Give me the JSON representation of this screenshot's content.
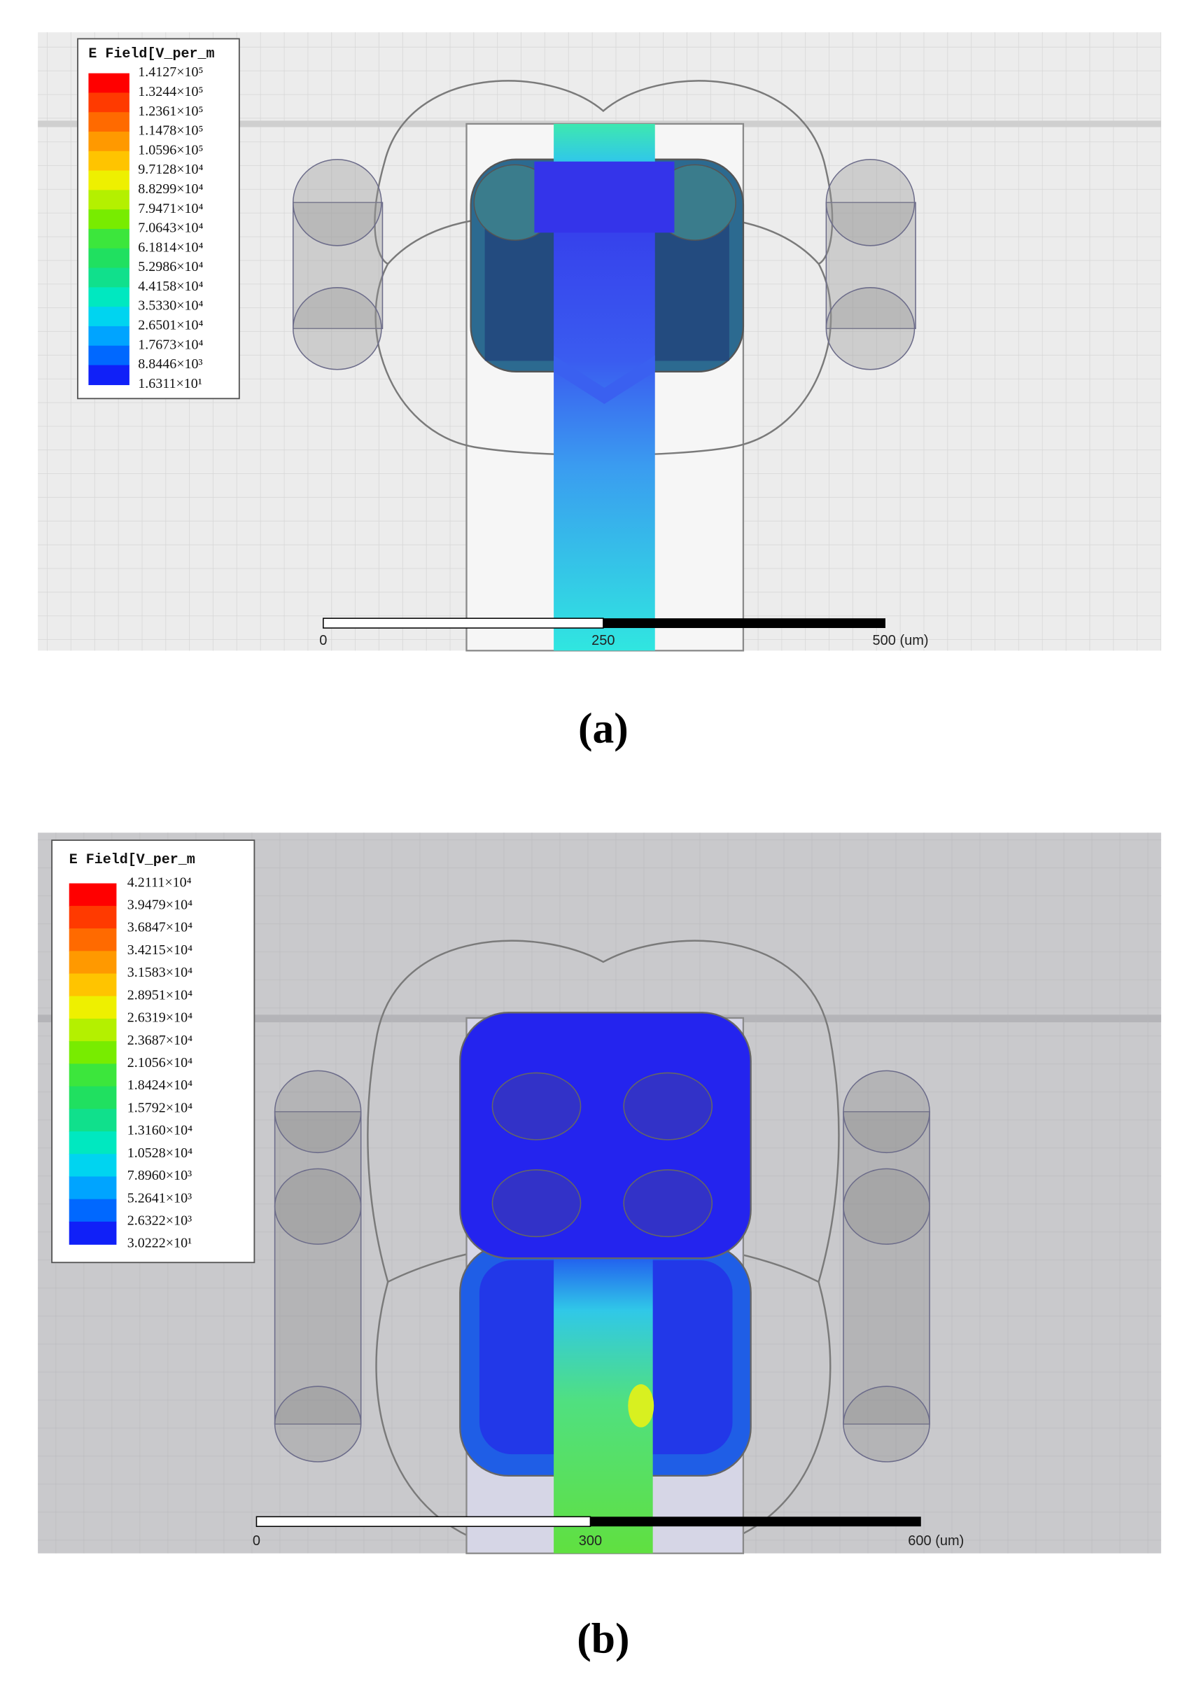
{
  "panels": [
    {
      "label": "(a)",
      "legend": {
        "title": "E Field[V_per_m",
        "labels": [
          "1.4127×10⁵",
          "1.3244×10⁵",
          "1.2361×10⁵",
          "1.1478×10⁵",
          "1.0596×10⁵",
          "9.7128×10⁴",
          "8.8299×10⁴",
          "7.9471×10⁴",
          "7.0643×10⁴",
          "6.1814×10⁴",
          "5.2986×10⁴",
          "4.4158×10⁴",
          "3.5330×10⁴",
          "2.6501×10⁴",
          "1.7673×10⁴",
          "8.8446×10³",
          "1.6311×10¹"
        ],
        "colors": [
          "#ff0000",
          "#ff3a00",
          "#ff6a00",
          "#ff9900",
          "#ffc400",
          "#eef000",
          "#b4f000",
          "#78ec00",
          "#3ce63c",
          "#20e060",
          "#10e08c",
          "#00e8c0",
          "#00d4f0",
          "#00a4ff",
          "#0068ff",
          "#1020f8"
        ]
      },
      "scale_bar": {
        "labels": [
          "0",
          "250",
          "500 (um)"
        ]
      }
    },
    {
      "label": "(b)",
      "legend": {
        "title": "E Field[V_per_m",
        "labels": [
          "4.2111×10⁴",
          "3.9479×10⁴",
          "3.6847×10⁴",
          "3.4215×10⁴",
          "3.1583×10⁴",
          "2.8951×10⁴",
          "2.6319×10⁴",
          "2.3687×10⁴",
          "2.1056×10⁴",
          "1.8424×10⁴",
          "1.5792×10⁴",
          "1.3160×10⁴",
          "1.0528×10⁴",
          "7.8960×10³",
          "5.2641×10³",
          "2.6322×10³",
          "3.0222×10¹"
        ],
        "colors": [
          "#ff0000",
          "#ff3a00",
          "#ff6a00",
          "#ff9900",
          "#ffc400",
          "#eef000",
          "#b4f000",
          "#78ec00",
          "#3ce63c",
          "#20e060",
          "#10e08c",
          "#00e8c0",
          "#00d4f0",
          "#00a4ff",
          "#0068ff",
          "#1020f8"
        ]
      },
      "scale_bar": {
        "labels": [
          "0",
          "300",
          "600 (um)"
        ]
      }
    }
  ]
}
